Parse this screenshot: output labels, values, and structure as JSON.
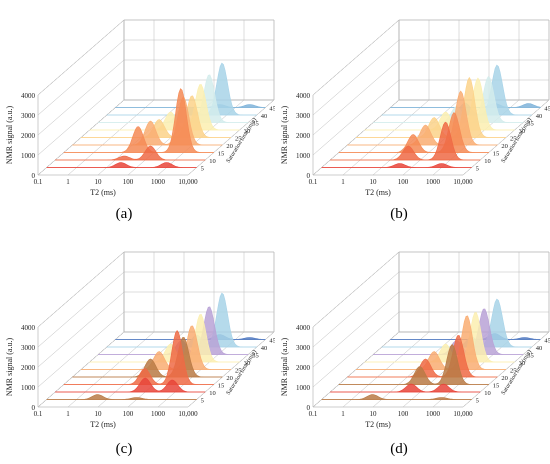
{
  "figure": {
    "captions": [
      "(a)",
      "(b)",
      "(c)",
      "(d)"
    ]
  },
  "chart_data": [
    {
      "type": "area",
      "panel": "(a)",
      "xlabel": "T2 (ms)",
      "ylabel": "NMR signal (a.u.)",
      "zlabel": "Saturation time (min)",
      "xscale": "log",
      "xlim": [
        0.1,
        10000
      ],
      "xticks": [
        "0.1",
        "1",
        "10",
        "100",
        "1000",
        "10,000"
      ],
      "ylim": [
        0,
        4000
      ],
      "yticks": [
        "0",
        "1000",
        "2000",
        "3000",
        "4000"
      ],
      "zticks": [
        "5",
        "10",
        "15",
        "20",
        "25",
        "30",
        "35",
        "40",
        "45"
      ],
      "series": [
        {
          "z": 5,
          "color": "#e8453a",
          "peaks": [
            {
              "T2": 30,
              "amp": 250
            },
            {
              "T2": 1000,
              "amp": 250
            }
          ]
        },
        {
          "z": 10,
          "color": "#ef6a45",
          "peaks": [
            {
              "T2": 150,
              "amp": 700
            },
            {
              "T2": 20,
              "amp": 200
            }
          ]
        },
        {
          "z": 15,
          "color": "#f48a55",
          "peaks": [
            {
              "T2": 30,
              "amp": 1300
            },
            {
              "T2": 800,
              "amp": 3200
            }
          ]
        },
        {
          "z": 20,
          "color": "#f9ad72",
          "peaks": [
            {
              "T2": 40,
              "amp": 1200
            },
            {
              "T2": 500,
              "amp": 2400
            }
          ]
        },
        {
          "z": 25,
          "color": "#fcd28a",
          "peaks": [
            {
              "T2": 40,
              "amp": 900
            },
            {
              "T2": 500,
              "amp": 2100
            }
          ]
        },
        {
          "z": 30,
          "color": "#fbefb0",
          "peaks": [
            {
              "T2": 50,
              "amp": 900
            },
            {
              "T2": 500,
              "amp": 2300
            }
          ]
        },
        {
          "z": 35,
          "color": "#d3ecec",
          "peaks": [
            {
              "T2": 60,
              "amp": 700
            },
            {
              "T2": 500,
              "amp": 2400
            }
          ]
        },
        {
          "z": 40,
          "color": "#a8d3e8",
          "peaks": [
            {
              "T2": 60,
              "amp": 400
            },
            {
              "T2": 700,
              "amp": 2600
            }
          ]
        },
        {
          "z": 45,
          "color": "#7fb3d9",
          "peaks": [
            {
              "T2": 300,
              "amp": 150
            },
            {
              "T2": 3000,
              "amp": 150
            }
          ]
        }
      ]
    },
    {
      "type": "area",
      "panel": "(b)",
      "xlabel": "T2 (ms)",
      "ylabel": "NMR signal (a.u.)",
      "zlabel": "Saturation time (min)",
      "xscale": "log",
      "xlim": [
        0.1,
        10000
      ],
      "xticks": [
        "0.1",
        "1",
        "10",
        "100",
        "1000",
        "10,000"
      ],
      "ylim": [
        0,
        4000
      ],
      "yticks": [
        "0",
        "1000",
        "2000",
        "3000",
        "4000"
      ],
      "zticks": [
        "5",
        "10",
        "15",
        "20",
        "25",
        "30",
        "35",
        "40",
        "45"
      ],
      "series": [
        {
          "z": 5,
          "color": "#e8453a",
          "peaks": [
            {
              "T2": 40,
              "amp": 200
            },
            {
              "T2": 1000,
              "amp": 200
            }
          ]
        },
        {
          "z": 10,
          "color": "#ef6a45",
          "peaks": [
            {
              "T2": 40,
              "amp": 700
            },
            {
              "T2": 700,
              "amp": 1900
            }
          ]
        },
        {
          "z": 15,
          "color": "#f48a55",
          "peaks": [
            {
              "T2": 30,
              "amp": 900
            },
            {
              "T2": 700,
              "amp": 2000
            }
          ]
        },
        {
          "z": 20,
          "color": "#f9ad72",
          "peaks": [
            {
              "T2": 40,
              "amp": 1000
            },
            {
              "T2": 600,
              "amp": 2700
            }
          ]
        },
        {
          "z": 25,
          "color": "#fcd28a",
          "peaks": [
            {
              "T2": 40,
              "amp": 1000
            },
            {
              "T2": 600,
              "amp": 3000
            }
          ]
        },
        {
          "z": 30,
          "color": "#fbefb0",
          "peaks": [
            {
              "T2": 50,
              "amp": 900
            },
            {
              "T2": 600,
              "amp": 2600
            }
          ]
        },
        {
          "z": 35,
          "color": "#d3ecec",
          "peaks": [
            {
              "T2": 60,
              "amp": 800
            },
            {
              "T2": 700,
              "amp": 2300
            }
          ]
        },
        {
          "z": 40,
          "color": "#a8d3e8",
          "peaks": [
            {
              "T2": 60,
              "amp": 600
            },
            {
              "T2": 700,
              "amp": 2500
            }
          ]
        },
        {
          "z": 45,
          "color": "#7fb3d9",
          "peaks": [
            {
              "T2": 300,
              "amp": 200
            },
            {
              "T2": 4000,
              "amp": 200
            }
          ]
        }
      ]
    },
    {
      "type": "area",
      "panel": "(c)",
      "xlabel": "T2 (ms)",
      "ylabel": "NMR signal (a.u.)",
      "zlabel": "Saturation time (min)",
      "xscale": "log",
      "xlim": [
        0.1,
        10000
      ],
      "xticks": [
        "0.1",
        "1",
        "10",
        "100",
        "1000",
        "10,000"
      ],
      "ylim": [
        0,
        4000
      ],
      "yticks": [
        "0",
        "1000",
        "2000",
        "3000",
        "4000"
      ],
      "zticks": [
        "5",
        "10",
        "15",
        "20",
        "25",
        "30",
        "35",
        "40",
        "45"
      ],
      "series": [
        {
          "z": 5,
          "color": "#b97a45",
          "peaks": [
            {
              "T2": 5,
              "amp": 250
            },
            {
              "T2": 100,
              "amp": 100
            }
          ]
        },
        {
          "z": 10,
          "color": "#e8453a",
          "peaks": [
            {
              "T2": 100,
              "amp": 700
            },
            {
              "T2": 800,
              "amp": 600
            }
          ]
        },
        {
          "z": 15,
          "color": "#ef6a45",
          "peaks": [
            {
              "T2": 50,
              "amp": 800
            },
            {
              "T2": 600,
              "amp": 2700
            }
          ]
        },
        {
          "z": 20,
          "color": "#b97a45",
          "peaks": [
            {
              "T2": 40,
              "amp": 900
            },
            {
              "T2": 500,
              "amp": 2000
            }
          ]
        },
        {
          "z": 25,
          "color": "#f9ad72",
          "peaks": [
            {
              "T2": 40,
              "amp": 900
            },
            {
              "T2": 500,
              "amp": 2200
            }
          ]
        },
        {
          "z": 30,
          "color": "#fbefb0",
          "peaks": [
            {
              "T2": 50,
              "amp": 900
            },
            {
              "T2": 500,
              "amp": 2400
            }
          ]
        },
        {
          "z": 35,
          "color": "#b9a2d6",
          "peaks": [
            {
              "T2": 60,
              "amp": 700
            },
            {
              "T2": 500,
              "amp": 2400
            }
          ]
        },
        {
          "z": 40,
          "color": "#a8d3e8",
          "peaks": [
            {
              "T2": 100,
              "amp": 600
            },
            {
              "T2": 700,
              "amp": 2700
            }
          ]
        },
        {
          "z": 45,
          "color": "#4f78c0",
          "peaks": [
            {
              "T2": 300,
              "amp": 250
            },
            {
              "T2": 3000,
              "amp": 100
            }
          ]
        }
      ]
    },
    {
      "type": "area",
      "panel": "(d)",
      "xlabel": "T2 (ms)",
      "ylabel": "NMR signal (a.u.)",
      "zlabel": "Saturation time (min)",
      "xscale": "log",
      "xlim": [
        0.1,
        10000
      ],
      "xticks": [
        "0.1",
        "1",
        "10",
        "100",
        "1000",
        "10,000"
      ],
      "ylim": [
        0,
        4000
      ],
      "yticks": [
        "0",
        "1000",
        "2000",
        "3000",
        "4000"
      ],
      "zticks": [
        "5",
        "10",
        "15",
        "20",
        "25",
        "30",
        "35",
        "40",
        "45"
      ],
      "series": [
        {
          "z": 5,
          "color": "#b97a45",
          "peaks": [
            {
              "T2": 5,
              "amp": 250
            },
            {
              "T2": 1000,
              "amp": 100
            }
          ]
        },
        {
          "z": 10,
          "color": "#e8453a",
          "peaks": [
            {
              "T2": 50,
              "amp": 400
            },
            {
              "T2": 600,
              "amp": 400
            }
          ]
        },
        {
          "z": 15,
          "color": "#b97a45",
          "peaks": [
            {
              "T2": 50,
              "amp": 900
            },
            {
              "T2": 600,
              "amp": 2000
            }
          ]
        },
        {
          "z": 20,
          "color": "#ef6a45",
          "peaks": [
            {
              "T2": 40,
              "amp": 900
            },
            {
              "T2": 500,
              "amp": 2100
            }
          ]
        },
        {
          "z": 25,
          "color": "#f9ad72",
          "peaks": [
            {
              "T2": 40,
              "amp": 900
            },
            {
              "T2": 500,
              "amp": 2700
            }
          ]
        },
        {
          "z": 30,
          "color": "#fbefb0",
          "peaks": [
            {
              "T2": 50,
              "amp": 900
            },
            {
              "T2": 500,
              "amp": 2500
            }
          ]
        },
        {
          "z": 35,
          "color": "#b9a2d6",
          "peaks": [
            {
              "T2": 60,
              "amp": 700
            },
            {
              "T2": 500,
              "amp": 2300
            }
          ]
        },
        {
          "z": 40,
          "color": "#a8d3e8",
          "peaks": [
            {
              "T2": 100,
              "amp": 500
            },
            {
              "T2": 700,
              "amp": 2400
            }
          ]
        },
        {
          "z": 45,
          "color": "#4f78c0",
          "peaks": [
            {
              "T2": 300,
              "amp": 300
            },
            {
              "T2": 3000,
              "amp": 100
            }
          ]
        }
      ]
    }
  ]
}
